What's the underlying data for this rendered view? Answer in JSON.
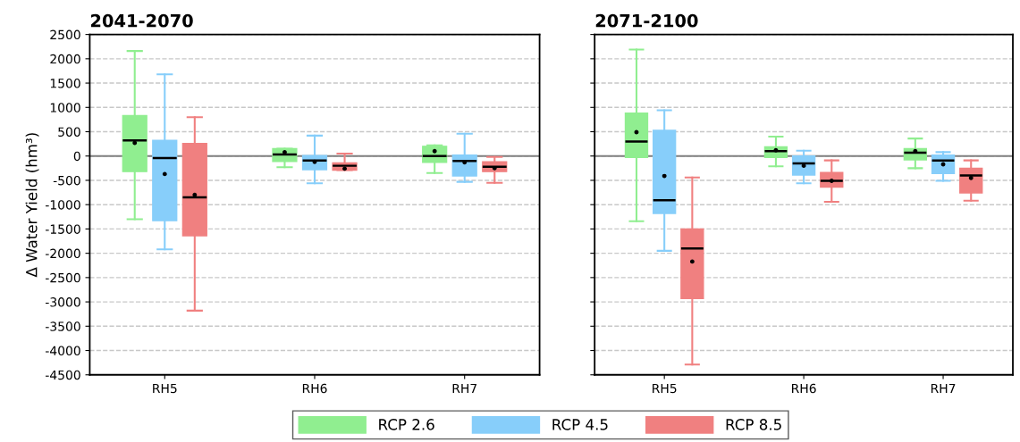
{
  "chart_data": [
    {
      "type": "box",
      "title": "2041-2070",
      "ylabel": "Δ Water Yield (hm³)",
      "categories": [
        "RH5",
        "RH6",
        "RH7"
      ],
      "ylim": [
        -4500,
        2500
      ],
      "yticks": [
        -4500,
        -4000,
        -3500,
        -3000,
        -2500,
        -2000,
        -1500,
        -1000,
        -500,
        0,
        500,
        1000,
        1500,
        2000,
        2500
      ],
      "grid": "y",
      "legend": "bottom",
      "ref_lines": [
        {
          "axis": "y",
          "value": 0,
          "color": "#808080",
          "line_style": "solid"
        }
      ],
      "series": [
        {
          "name": "RCP 2.6",
          "color": "#90ee90",
          "boxes": [
            {
              "low": -1300,
              "q1": -320,
              "median": 320,
              "q3": 830,
              "high": 2160,
              "mean": 270
            },
            {
              "low": -230,
              "q1": -110,
              "median": 30,
              "q3": 150,
              "high": 150,
              "mean": 80
            },
            {
              "low": -350,
              "q1": -130,
              "median": 0,
              "q3": 200,
              "high": 220,
              "mean": 100
            }
          ]
        },
        {
          "name": "RCP 4.5",
          "color": "#87cefa",
          "boxes": [
            {
              "low": -1920,
              "q1": -1330,
              "median": -40,
              "q3": 320,
              "high": 1680,
              "mean": -370
            },
            {
              "low": -560,
              "q1": -280,
              "median": -90,
              "q3": 10,
              "high": 420,
              "mean": -120
            },
            {
              "low": -530,
              "q1": -410,
              "median": -100,
              "q3": 20,
              "high": 460,
              "mean": -130
            }
          ]
        },
        {
          "name": "RCP 8.5",
          "color": "#f08080",
          "boxes": [
            {
              "low": -3180,
              "q1": -1640,
              "median": -850,
              "q3": 260,
              "high": 800,
              "mean": -800
            },
            {
              "low": -290,
              "q1": -290,
              "median": -200,
              "q3": -140,
              "high": 50,
              "mean": -260
            },
            {
              "low": -550,
              "q1": -320,
              "median": -220,
              "q3": -120,
              "high": -20,
              "mean": -250
            }
          ]
        }
      ]
    },
    {
      "type": "box",
      "title": "2071-2100",
      "categories": [
        "RH5",
        "RH6",
        "RH7"
      ],
      "ylim": [
        -4500,
        2500
      ],
      "yticks": [
        -4500,
        -4000,
        -3500,
        -3000,
        -2500,
        -2000,
        -1500,
        -1000,
        -500,
        0,
        500,
        1000,
        1500,
        2000,
        2500
      ],
      "grid": "y",
      "tick_labels": "x",
      "ref_lines": [
        {
          "axis": "y",
          "value": 0,
          "color": "#808080",
          "line_style": "solid"
        }
      ],
      "series": [
        {
          "color": "#90ee90",
          "boxes": [
            {
              "low": -1340,
              "q1": -30,
              "median": 300,
              "q3": 880,
              "high": 2190,
              "mean": 490
            },
            {
              "low": -210,
              "q1": -30,
              "median": 100,
              "q3": 190,
              "high": 400,
              "mean": 120
            },
            {
              "low": -250,
              "q1": -80,
              "median": 70,
              "q3": 150,
              "high": 360,
              "mean": 100
            }
          ]
        },
        {
          "color": "#87cefa",
          "boxes": [
            {
              "low": -1950,
              "q1": -1180,
              "median": -910,
              "q3": 530,
              "high": 940,
              "mean": -410
            },
            {
              "low": -560,
              "q1": -390,
              "median": -150,
              "q3": 0,
              "high": 110,
              "mean": -200
            },
            {
              "low": -510,
              "q1": -360,
              "median": -90,
              "q3": 20,
              "high": 80,
              "mean": -170
            }
          ]
        },
        {
          "color": "#f08080",
          "boxes": [
            {
              "low": -4290,
              "q1": -2930,
              "median": -1900,
              "q3": -1500,
              "high": -440,
              "mean": -2170
            },
            {
              "low": -940,
              "q1": -640,
              "median": -510,
              "q3": -340,
              "high": -90,
              "mean": -510
            },
            {
              "low": -920,
              "q1": -760,
              "median": -400,
              "q3": -250,
              "high": -90,
              "mean": -450
            }
          ]
        }
      ]
    }
  ]
}
